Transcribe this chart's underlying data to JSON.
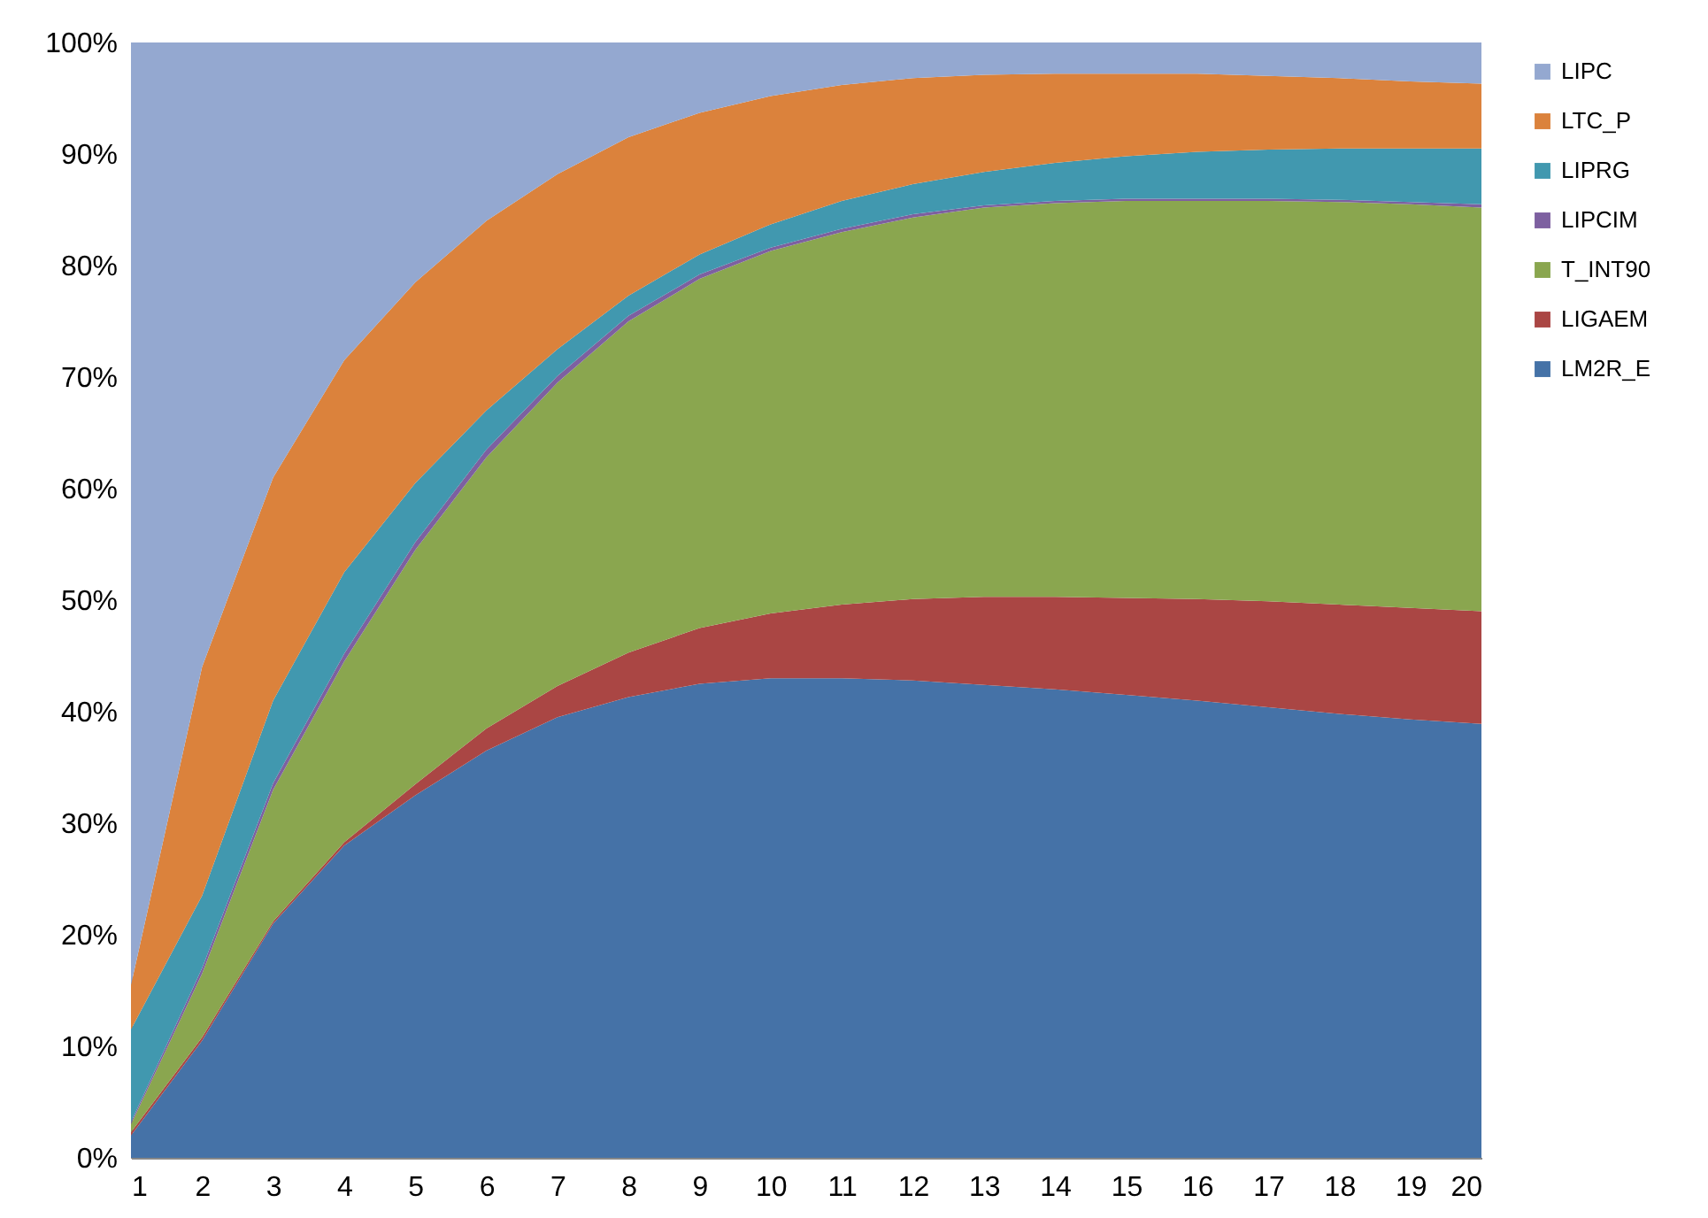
{
  "chart_data": {
    "type": "area",
    "stacked": true,
    "legend": "right",
    "grid": false,
    "x": [
      1,
      2,
      3,
      4,
      5,
      6,
      7,
      8,
      9,
      10,
      11,
      12,
      13,
      14,
      15,
      16,
      17,
      18,
      19,
      20
    ],
    "xlim": [
      1,
      20
    ],
    "xticks": [
      1,
      2,
      3,
      4,
      5,
      6,
      7,
      8,
      9,
      10,
      11,
      12,
      13,
      14,
      15,
      16,
      17,
      18,
      19,
      20
    ],
    "ylim": [
      0,
      100
    ],
    "yticks": [
      {
        "value": 0,
        "label": "0%"
      },
      {
        "value": 10,
        "label": "10%"
      },
      {
        "value": 20,
        "label": "20%"
      },
      {
        "value": 30,
        "label": "30%"
      },
      {
        "value": 40,
        "label": "40%"
      },
      {
        "value": 50,
        "label": "50%"
      },
      {
        "value": 60,
        "label": "60%"
      },
      {
        "value": 70,
        "label": "70%"
      },
      {
        "value": 80,
        "label": "80%"
      },
      {
        "value": 90,
        "label": "90%"
      },
      {
        "value": 100,
        "label": "100%"
      }
    ],
    "series": [
      {
        "name": "LM2R_E",
        "color": "#4572a7",
        "values": [
          2,
          10.5,
          21,
          28,
          32.5,
          36.5,
          39.5,
          41.3,
          42.5,
          43,
          43,
          42.8,
          42.4,
          42,
          41.5,
          41,
          40.4,
          39.8,
          39.3,
          38.9
        ]
      },
      {
        "name": "LIGAEM",
        "color": "#aa4644",
        "values": [
          0.3,
          0.3,
          0.2,
          0.3,
          1,
          2,
          2.8,
          4,
          5,
          5.8,
          6.6,
          7.3,
          7.9,
          8.3,
          8.7,
          9.1,
          9.5,
          9.8,
          10,
          10.1
        ]
      },
      {
        "name": "T_INT90",
        "color": "#8aa64f",
        "values": [
          0.7,
          5.7,
          11.8,
          16.2,
          21,
          24.3,
          27.2,
          29.7,
          31.3,
          32.5,
          33.4,
          34.2,
          34.9,
          35.3,
          35.6,
          35.7,
          35.9,
          36.1,
          36.2,
          36.2
        ]
      },
      {
        "name": "LIPCIM",
        "color": "#7d60a0",
        "values": [
          0.2,
          0.5,
          0.6,
          0.7,
          0.7,
          0.7,
          0.6,
          0.5,
          0.4,
          0.3,
          0.3,
          0.3,
          0.2,
          0.2,
          0.2,
          0.2,
          0.2,
          0.2,
          0.2,
          0.3
        ]
      },
      {
        "name": "LIPRG",
        "color": "#4198af",
        "values": [
          8.3,
          6.5,
          7.4,
          7.3,
          5.3,
          3.5,
          2.4,
          1.8,
          1.8,
          2.1,
          2.5,
          2.7,
          3,
          3.4,
          3.8,
          4.2,
          4.4,
          4.6,
          4.8,
          5
        ]
      },
      {
        "name": "LTC_P",
        "color": "#db823c",
        "values": [
          4,
          20.5,
          20,
          19,
          18,
          17,
          15.7,
          14.2,
          12.7,
          11.5,
          10.4,
          9.5,
          8.7,
          8,
          7.4,
          7,
          6.6,
          6.3,
          6,
          5.8
        ]
      },
      {
        "name": "LIPC",
        "color": "#94a8d0",
        "values": [
          84.5,
          56,
          39,
          28.5,
          21.5,
          16,
          11.8,
          8.5,
          6.3,
          4.8,
          3.8,
          3.2,
          2.9,
          2.8,
          2.8,
          2.8,
          3,
          3.2,
          3.5,
          3.7
        ]
      }
    ]
  }
}
